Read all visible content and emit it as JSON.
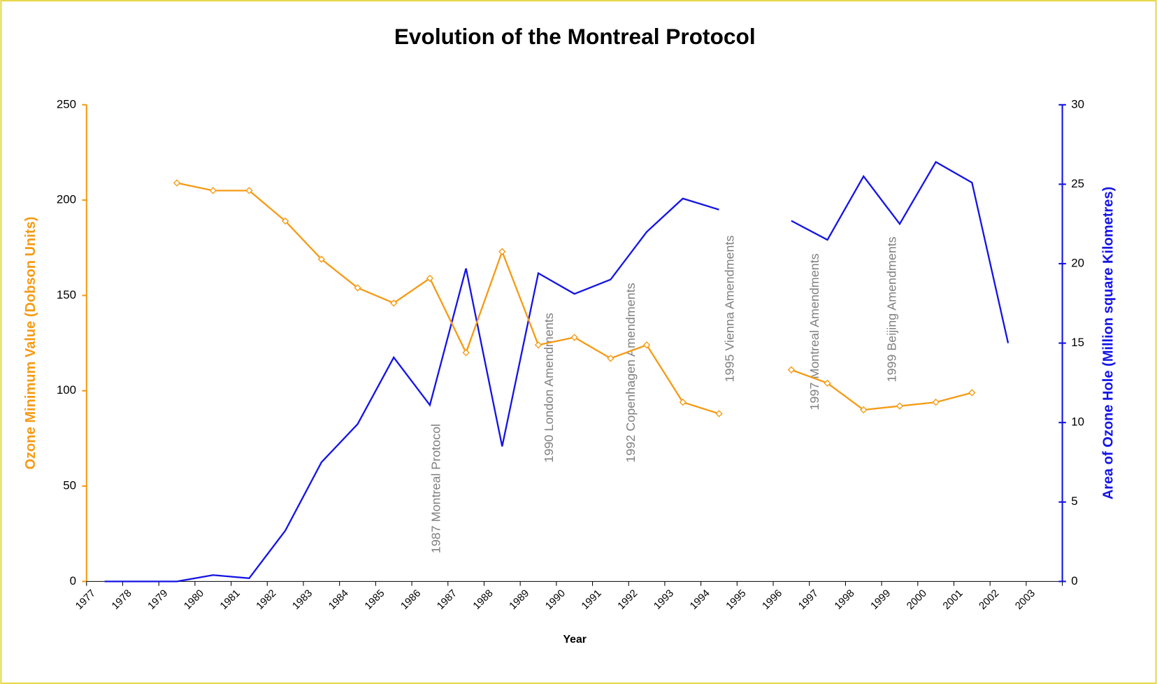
{
  "chart_data": {
    "type": "line",
    "title": "Evolution of the Montreal Protocol",
    "x_label": "Year",
    "y_label": "Ozone Minimum Value (Dobson Units)",
    "y2_label": "Area of Ozone Hole (Million square Kilometres)",
    "categories": [
      "1977",
      "1978",
      "1979",
      "1980",
      "1981",
      "1982",
      "1983",
      "1984",
      "1985",
      "1986",
      "1987",
      "1988",
      "1989",
      "1990",
      "1991",
      "1992",
      "1993",
      "1994",
      "1995",
      "1996",
      "1997",
      "1998",
      "1999",
      "2000",
      "2001",
      "2002",
      "2003"
    ],
    "series": [
      {
        "name": "Ozone Minimum Value",
        "color": "#f59b14",
        "marker": "diamond",
        "values": [
          null,
          null,
          209,
          205,
          205,
          189,
          169,
          154,
          146,
          159,
          120,
          173,
          124,
          128,
          117,
          124,
          94,
          88,
          null,
          111,
          104,
          90,
          92,
          94,
          99,
          null,
          null
        ]
      },
      {
        "name": "Area of Ozone Hole",
        "color": "#1414e6",
        "axis": "y2",
        "values": [
          0,
          0,
          0,
          0.4,
          0.2,
          3.2,
          7.5,
          9.9,
          14.1,
          11.1,
          19.7,
          8.5,
          19.4,
          18.1,
          19.0,
          22.0,
          24.1,
          23.4,
          null,
          22.7,
          21.5,
          25.5,
          22.5,
          26.4,
          25.1,
          15.0,
          null
        ]
      }
    ],
    "ylim": [
      0,
      250
    ],
    "yticks": [
      0,
      50,
      100,
      150,
      200,
      250
    ],
    "y2lim": [
      0,
      30
    ],
    "y2ticks": [
      0,
      5,
      10,
      15,
      20,
      25,
      30
    ],
    "annotations": [
      "1987 Montreal Protocol",
      "1990 London Amendments",
      "1992 Copenhagen Amendments",
      "1995 Vienna Amendments",
      "1997 Montreal Amendments",
      "1999 Beijing Amendments"
    ]
  }
}
